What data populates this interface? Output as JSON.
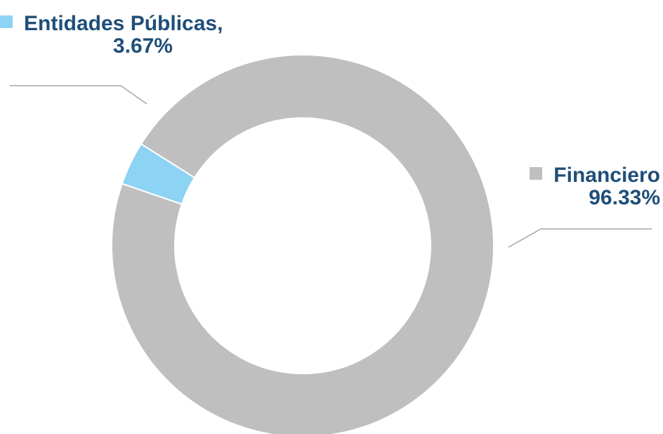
{
  "chart_data": {
    "type": "pie",
    "variant": "donut",
    "slices": [
      {
        "label": "Financiero",
        "value": 96.33,
        "value_text": "96.33%",
        "color": "#bfbfbf"
      },
      {
        "label": "Entidades Públicas,",
        "value": 3.67,
        "value_text": "3.67%",
        "color": "#8dd3f3"
      }
    ],
    "legend_placement": "outside-labels"
  },
  "colors": {
    "label_text": "#1f4e79",
    "leader_line": "#a6a6a6",
    "slice_border": "#ffffff"
  }
}
